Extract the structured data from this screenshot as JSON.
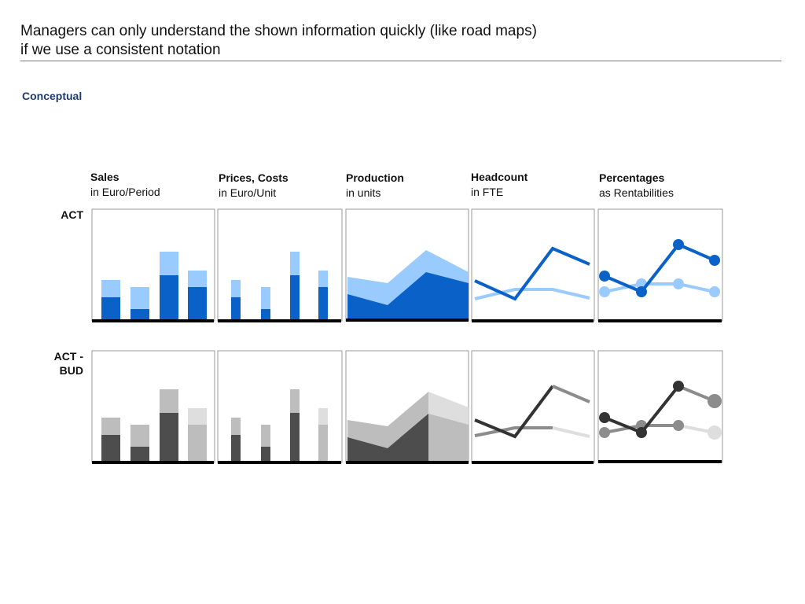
{
  "header": {
    "title_line1": "Managers can only understand the shown information quickly (like road maps)",
    "title_line2": "if we use a consistent notation"
  },
  "section_label": "Conceptual",
  "columns": [
    {
      "heading": "Sales",
      "subheading": "in Euro/Period"
    },
    {
      "heading": "Prices, Costs",
      "subheading": "in Euro/Unit"
    },
    {
      "heading": "Production",
      "subheading": "in units"
    },
    {
      "heading": "Headcount",
      "subheading": "in FTE"
    },
    {
      "heading": "Percentages",
      "subheading": "as Rentabilities"
    }
  ],
  "rows": [
    {
      "label_line1": "ACT",
      "label_line2": ""
    },
    {
      "label_line1": "ACT -",
      "label_line2": "BUD"
    }
  ],
  "colors": {
    "act_dark": "#0a62c8",
    "act_light": "#99cbff",
    "bud_dark": "#4d4d4d",
    "bud_mid": "#8c8c8c",
    "bud_light": "#bdbdbd",
    "forecast_light": "#dedede",
    "axis": "#000000",
    "panel_border": "#9a9a9a"
  }
}
